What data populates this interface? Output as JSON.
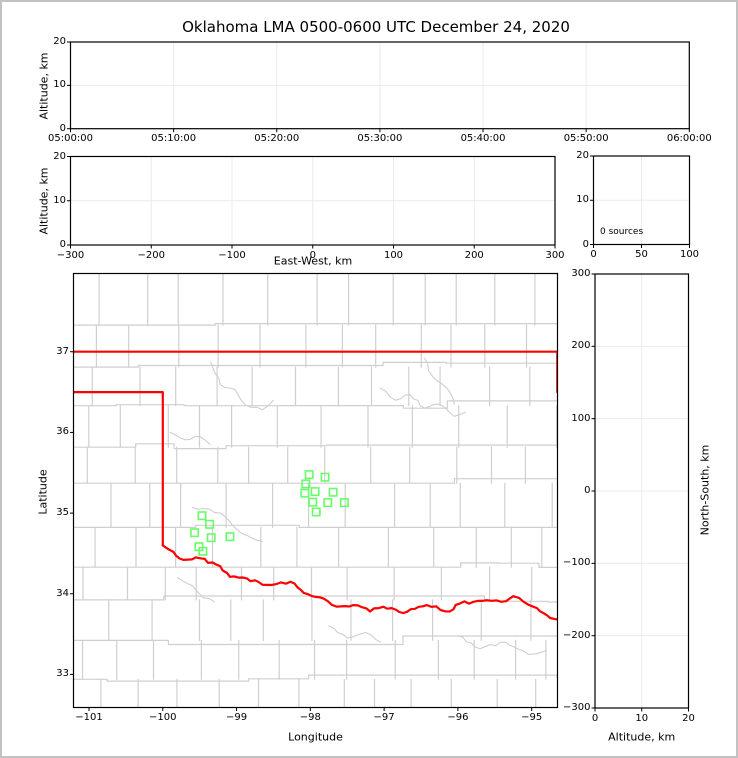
{
  "title": "Oklahoma LMA 0500-0600 UTC December 24, 2020",
  "panels": {
    "time_height": {
      "ylabel": "Altitude, km",
      "xticks": [
        "05:00:00",
        "05:10:00",
        "05:20:00",
        "05:30:00",
        "05:40:00",
        "05:50:00",
        "06:00:00"
      ],
      "yticks": [
        "0",
        "10",
        "20"
      ]
    },
    "ew_height": {
      "ylabel": "Altitude, km",
      "xlabel": "East-West, km",
      "xticks": [
        "−300",
        "−200",
        "−100",
        "0",
        "100",
        "200",
        "300"
      ],
      "yticks": [
        "0",
        "10",
        "20"
      ]
    },
    "alt_histogram": {
      "annotation": "0 sources",
      "xticks": [
        "0",
        "50",
        "100"
      ],
      "yticks": [
        "0",
        "10",
        "20"
      ]
    },
    "map": {
      "xlabel": "Longitude",
      "ylabel": "Latitude",
      "xticks": [
        "−101",
        "−100",
        "−99",
        "−98",
        "−97",
        "−96",
        "−95"
      ],
      "yticks": [
        "33",
        "34",
        "35",
        "36",
        "37"
      ]
    },
    "ns_height": {
      "xlabel": "Altitude, km",
      "ylabel": "North-South, km",
      "xticks": [
        "0",
        "10",
        "20"
      ],
      "yticks": [
        "−300",
        "−200",
        "−100",
        "0",
        "100",
        "200",
        "300"
      ]
    }
  },
  "chart_data": {
    "type": "scatter",
    "figure": "LMA multi-panel display: time-height, EW-height, altitude histogram, plan-view map, NS-height",
    "title": "Oklahoma LMA 0500-0600 UTC December 24, 2020",
    "vhf_sources": [],
    "source_count": 0,
    "time_axis": {
      "start": "05:00:00",
      "end": "06:00:00",
      "tick_interval_minutes": 10
    },
    "altitude_axis_km": [
      0,
      20
    ],
    "ew_axis_km": [
      -300,
      300
    ],
    "ns_axis_km": [
      -300,
      300
    ],
    "histogram_axis": [
      0,
      100
    ],
    "map": {
      "lon_range": [
        -101.21,
        -94.65
      ],
      "lat_range": [
        32.59,
        37.97
      ],
      "station_color": "#66ff66",
      "state_border_color": "#ff0000",
      "county_line_color": "#cfcfcf",
      "grid_color": "#ebebeb",
      "stations": [
        {
          "lon": -99.469,
          "lat": 34.968
        },
        {
          "lon": -99.366,
          "lat": 34.861
        },
        {
          "lon": -99.569,
          "lat": 34.757
        },
        {
          "lon": -99.343,
          "lat": 34.695
        },
        {
          "lon": -99.09,
          "lat": 34.707
        },
        {
          "lon": -99.51,
          "lat": 34.583
        },
        {
          "lon": -99.456,
          "lat": 34.526
        },
        {
          "lon": -98.016,
          "lat": 35.477
        },
        {
          "lon": -97.8,
          "lat": 35.445
        },
        {
          "lon": -98.061,
          "lat": 35.362
        },
        {
          "lon": -98.075,
          "lat": 35.246
        },
        {
          "lon": -97.935,
          "lat": 35.266
        },
        {
          "lon": -97.691,
          "lat": 35.259
        },
        {
          "lon": -97.763,
          "lat": 35.13
        },
        {
          "lon": -97.538,
          "lat": 35.13
        },
        {
          "lon": -97.966,
          "lat": 35.135
        },
        {
          "lon": -97.921,
          "lat": 35.014
        }
      ],
      "state_border": {
        "kansas_line": [
          [
            -101.21,
            37.0
          ],
          [
            -94.653,
            37.0
          ]
        ],
        "panhandle_and_texas": [
          [
            -101.21,
            36.5
          ],
          [
            -100.0,
            36.5
          ],
          [
            -100.0,
            34.6
          ]
        ],
        "east_segment": [
          [
            -94.653,
            37.0
          ],
          [
            -94.653,
            36.5
          ]
        ],
        "red_river": [
          [
            -100.0,
            34.6
          ],
          [
            -99.72,
            34.42
          ],
          [
            -99.49,
            34.44
          ],
          [
            -99.22,
            34.34
          ],
          [
            -99.09,
            34.21
          ],
          [
            -98.86,
            34.19
          ],
          [
            -98.59,
            34.11
          ],
          [
            -98.27,
            34.15
          ],
          [
            -98.09,
            34.01
          ],
          [
            -97.82,
            33.94
          ],
          [
            -97.64,
            33.84
          ],
          [
            -97.42,
            33.86
          ],
          [
            -97.19,
            33.78
          ],
          [
            -97.01,
            33.84
          ],
          [
            -96.74,
            33.76
          ],
          [
            -96.42,
            33.86
          ],
          [
            -96.11,
            33.78
          ],
          [
            -95.97,
            33.88
          ],
          [
            -95.79,
            33.9
          ],
          [
            -95.61,
            33.92
          ],
          [
            -95.41,
            33.9
          ],
          [
            -95.25,
            33.97
          ],
          [
            -95.11,
            33.9
          ],
          [
            -94.98,
            33.84
          ],
          [
            -94.84,
            33.76
          ],
          [
            -94.75,
            33.7
          ],
          [
            -94.65,
            33.68
          ]
        ]
      },
      "rivers": [
        [
          [
            -99.9,
            36.0
          ],
          [
            -99.7,
            35.91
          ],
          [
            -99.5,
            35.95
          ],
          [
            -99.36,
            35.85
          ]
        ],
        [
          [
            -99.35,
            36.87
          ],
          [
            -99.22,
            36.59
          ],
          [
            -99.02,
            36.53
          ],
          [
            -98.88,
            36.34
          ],
          [
            -98.65,
            36.28
          ],
          [
            -98.5,
            36.4
          ]
        ],
        [
          [
            -97.05,
            36.55
          ],
          [
            -96.85,
            36.4
          ],
          [
            -96.65,
            36.47
          ],
          [
            -96.45,
            36.3
          ],
          [
            -96.25,
            36.35
          ],
          [
            -96.05,
            36.2
          ],
          [
            -95.9,
            36.25
          ]
        ],
        [
          [
            -96.45,
            36.92
          ],
          [
            -96.35,
            36.7
          ],
          [
            -96.15,
            36.55
          ],
          [
            -96.05,
            36.35
          ]
        ],
        [
          [
            -99.6,
            35.07
          ],
          [
            -99.37,
            35.05
          ],
          [
            -99.15,
            34.95
          ],
          [
            -99.0,
            34.8
          ],
          [
            -98.85,
            34.72
          ],
          [
            -98.65,
            34.65
          ]
        ],
        [
          [
            -97.75,
            33.6
          ],
          [
            -97.5,
            33.45
          ],
          [
            -97.25,
            33.52
          ],
          [
            -97.05,
            33.4
          ]
        ],
        [
          [
            -96.0,
            33.48
          ],
          [
            -95.7,
            33.32
          ],
          [
            -95.35,
            33.4
          ],
          [
            -95.05,
            33.25
          ],
          [
            -94.8,
            33.3
          ]
        ],
        [
          [
            -99.8,
            34.2
          ],
          [
            -99.6,
            34.1
          ],
          [
            -99.45,
            33.95
          ],
          [
            -99.3,
            33.9
          ]
        ]
      ]
    }
  }
}
